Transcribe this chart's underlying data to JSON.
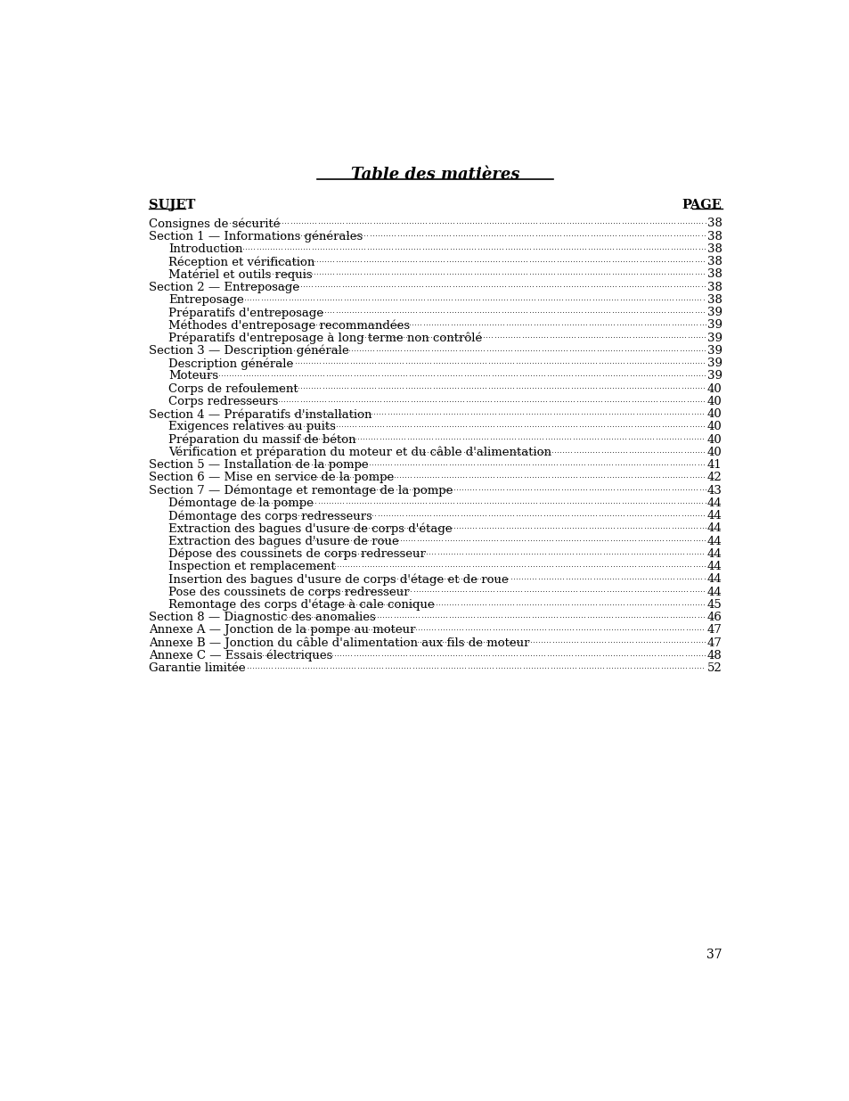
{
  "title": "Table des matières",
  "header_left": "SUJET",
  "header_right": "PAGE",
  "background_color": "#ffffff",
  "text_color": "#000000",
  "page_number": "37",
  "entries": [
    {
      "text": "Consignes de sécurité",
      "page": "38",
      "indent": 0
    },
    {
      "text": "Section 1 — Informations générales",
      "page": "38",
      "indent": 0
    },
    {
      "text": "Introduction",
      "page": "38",
      "indent": 1
    },
    {
      "text": "Réception et vérification",
      "page": "38",
      "indent": 1
    },
    {
      "text": "Matériel et outils requis",
      "page": "38",
      "indent": 1
    },
    {
      "text": "Section 2 — Entreposage",
      "page": "38",
      "indent": 0
    },
    {
      "text": "Entreposage",
      "page": "38",
      "indent": 1
    },
    {
      "text": "Préparatifs d'entreposage",
      "page": "39",
      "indent": 1
    },
    {
      "text": "Méthodes d'entreposage recommandées",
      "page": "39",
      "indent": 1
    },
    {
      "text": "Préparatifs d'entreposage à long terme non contrôlé",
      "page": "39",
      "indent": 1
    },
    {
      "text": "Section 3 — Description générale",
      "page": "39",
      "indent": 0
    },
    {
      "text": "Description générale",
      "page": "39",
      "indent": 1
    },
    {
      "text": "Moteurs",
      "page": "39",
      "indent": 1
    },
    {
      "text": "Corps de refoulement",
      "page": "40",
      "indent": 1
    },
    {
      "text": "Corps redresseurs",
      "page": "40",
      "indent": 1
    },
    {
      "text": "Section 4 — Préparatifs d'installation",
      "page": "40",
      "indent": 0
    },
    {
      "text": "Exigences relatives au puits",
      "page": "40",
      "indent": 1
    },
    {
      "text": "Préparation du massif de béton",
      "page": "40",
      "indent": 1
    },
    {
      "text": "Vérification et préparation du moteur et du câble d'alimentation",
      "page": "40",
      "indent": 1
    },
    {
      "text": "Section 5 — Installation de la pompe",
      "page": "41",
      "indent": 0
    },
    {
      "text": "Section 6 — Mise en service de la pompe",
      "page": "42",
      "indent": 0
    },
    {
      "text": "Section 7 — Démontage et remontage de la pompe",
      "page": "43",
      "indent": 0
    },
    {
      "text": "Démontage de la pompe",
      "page": "44",
      "indent": 1
    },
    {
      "text": "Démontage des corps redresseurs",
      "page": "44",
      "indent": 1
    },
    {
      "text": "Extraction des bagues d'usure de corps d'étage",
      "page": "44",
      "indent": 1
    },
    {
      "text": "Extraction des bagues d'usure de roue",
      "page": "44",
      "indent": 1
    },
    {
      "text": "Dépose des coussinets de corps redresseur",
      "page": "44",
      "indent": 1
    },
    {
      "text": "Inspection et remplacement",
      "page": "44",
      "indent": 1
    },
    {
      "text": "Insertion des bagues d'usure de corps d'étage et de roue",
      "page": "44",
      "indent": 1
    },
    {
      "text": "Pose des coussinets de corps redresseur",
      "page": "44",
      "indent": 1
    },
    {
      "text": "Remontage des corps d'étage à cale conique",
      "page": "45",
      "indent": 1
    },
    {
      "text": "Section 8 — Diagnostic des anomalies",
      "page": "46",
      "indent": 0
    },
    {
      "text": "Annexe A — Jonction de la pompe au moteur",
      "page": "47",
      "indent": 0
    },
    {
      "text": "Annexe B — Jonction du câble d'alimentation aux fils de moteur",
      "page": "47",
      "indent": 0
    },
    {
      "text": "Annexe C — Essais électriques",
      "page": "48",
      "indent": 0
    },
    {
      "text": "Garantie limitée",
      "page": "52",
      "indent": 0
    }
  ]
}
